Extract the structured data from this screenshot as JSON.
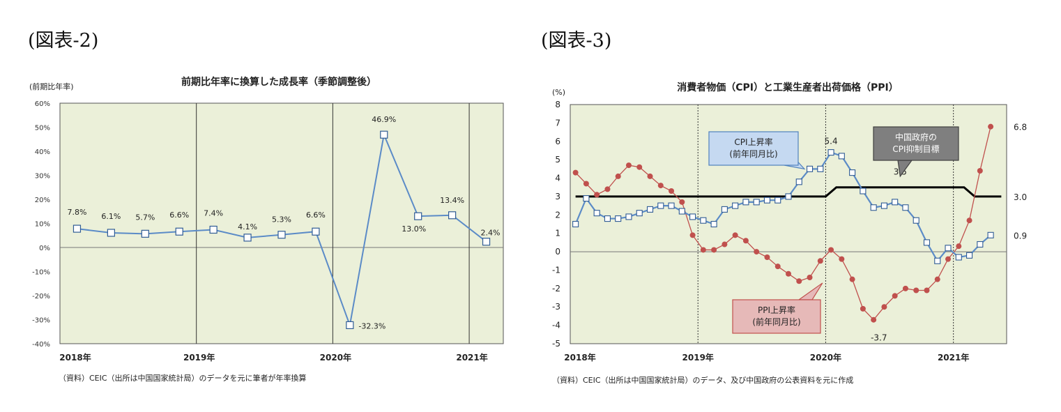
{
  "figures": [
    {
      "label": "(図表-2)"
    },
    {
      "label": "(図表-3)"
    }
  ],
  "chart_data": [
    {
      "type": "line",
      "title": "前期比年率に換算した成長率（季節調整後）",
      "ylabel": "(前期比年率)",
      "xlabel": "",
      "ylim": [
        -40,
        60
      ],
      "y_ticks": [
        -40,
        -30,
        -20,
        -10,
        0,
        10,
        20,
        30,
        40,
        50,
        60
      ],
      "y_tick_labels": [
        "-40%",
        "-30%",
        "-20%",
        "-10%",
        "0%",
        "10%",
        "20%",
        "30%",
        "40%",
        "50%",
        "60%"
      ],
      "x_ticks": [
        0,
        4,
        8,
        12
      ],
      "x_tick_labels": [
        "2018年",
        "2019年",
        "2020年",
        "2021年"
      ],
      "x_range": [
        -0.5,
        12.5
      ],
      "grid": false,
      "background": "#ebf0d9",
      "colors": {
        "line": "#5b8bc7",
        "marker_face": "#ffffff",
        "marker_edge": "#2f5b94",
        "divider": "#333333"
      },
      "series": [
        {
          "x": [
            0,
            1,
            2,
            3,
            4,
            5,
            6,
            7,
            8,
            9,
            10,
            11,
            12
          ],
          "values": [
            7.8,
            6.1,
            5.7,
            6.6,
            7.4,
            4.1,
            5.3,
            6.6,
            -32.3,
            46.9,
            13.0,
            13.4,
            2.4
          ]
        }
      ],
      "data_labels": [
        "7.8%",
        "6.1%",
        "5.7%",
        "6.6%",
        "7.4%",
        "4.1%",
        "5.3%",
        "6.6%",
        "-32.3%",
        "46.9%",
        "13.0%",
        "13.4%",
        "2.4%"
      ],
      "source_note": "（資料）CEIC（出所は中国国家統計局）のデータを元に筆者が年率換算"
    },
    {
      "type": "line",
      "title": "消費者物価（CPI）と工業生産者出荷価格（PPI）",
      "ylabel": "(%)",
      "xlabel": "",
      "ylim": [
        -5,
        8
      ],
      "y_ticks": [
        -5,
        -4,
        -3,
        -2,
        -1,
        0,
        1,
        2,
        3,
        4,
        5,
        6,
        7,
        8
      ],
      "y_tick_labels": [
        "-5",
        "-4",
        "-3",
        "-2",
        "-1",
        "0",
        "1",
        "2",
        "3",
        "4",
        "5",
        "6",
        "7",
        "8"
      ],
      "x_ticks": [
        0,
        12,
        24,
        36
      ],
      "x_tick_labels": [
        "2018年",
        "2019年",
        "2020年",
        "2021年"
      ],
      "x_range": [
        -0.5,
        40.5
      ],
      "grid": false,
      "background": "#ebf0d9",
      "colors": {
        "cpi": "#5b8bc7",
        "cpi_marker_face": "#ffffff",
        "ppi": "#c0504d",
        "target": "#000000"
      },
      "series": [
        {
          "key": "cpi",
          "x_start": 0,
          "values": [
            1.5,
            2.9,
            2.1,
            1.8,
            1.8,
            1.9,
            2.1,
            2.3,
            2.5,
            2.5,
            2.2,
            1.9,
            1.7,
            1.5,
            2.3,
            2.5,
            2.7,
            2.7,
            2.8,
            2.8,
            3.0,
            3.8,
            4.5,
            4.5,
            5.4,
            5.2,
            4.3,
            3.3,
            2.4,
            2.5,
            2.7,
            2.4,
            1.7,
            0.5,
            -0.5,
            0.2,
            -0.3,
            -0.2,
            0.4,
            0.9
          ]
        },
        {
          "key": "ppi",
          "x_start": 0,
          "values": [
            4.3,
            3.7,
            3.1,
            3.4,
            4.1,
            4.7,
            4.6,
            4.1,
            3.6,
            3.3,
            2.7,
            0.9,
            0.1,
            0.1,
            0.4,
            0.9,
            0.6,
            0.0,
            -0.3,
            -0.8,
            -1.2,
            -1.6,
            -1.4,
            -0.5,
            0.1,
            -0.4,
            -1.5,
            -3.1,
            -3.7,
            -3.0,
            -2.4,
            -2.0,
            -2.1,
            -2.1,
            -1.5,
            -0.4,
            0.3,
            1.7,
            4.4,
            6.8
          ]
        },
        {
          "key": "target",
          "points": [
            [
              0,
              3.0
            ],
            [
              23.5,
              3.0
            ],
            [
              24.5,
              3.5
            ],
            [
              36.5,
              3.5
            ],
            [
              37.5,
              3.0
            ],
            [
              40,
              3.0
            ]
          ]
        }
      ],
      "value_labels": {
        "cpi_peak": "5.4",
        "target_2020": "3.5",
        "ppi_min": "-3.7",
        "ppi_last": "6.8",
        "target_last": "3.0",
        "cpi_last": "0.9"
      },
      "callouts": {
        "cpi": [
          "CPI上昇率",
          "(前年同月比)"
        ],
        "target": [
          "中国政府の",
          "CPI抑制目標"
        ],
        "ppi": [
          "PPI上昇率",
          "(前年同月比)"
        ]
      },
      "source_note": "（資料）CEIC（出所は中国国家統計局）のデータ、及び中国政府の公表資料を元に作成"
    }
  ]
}
